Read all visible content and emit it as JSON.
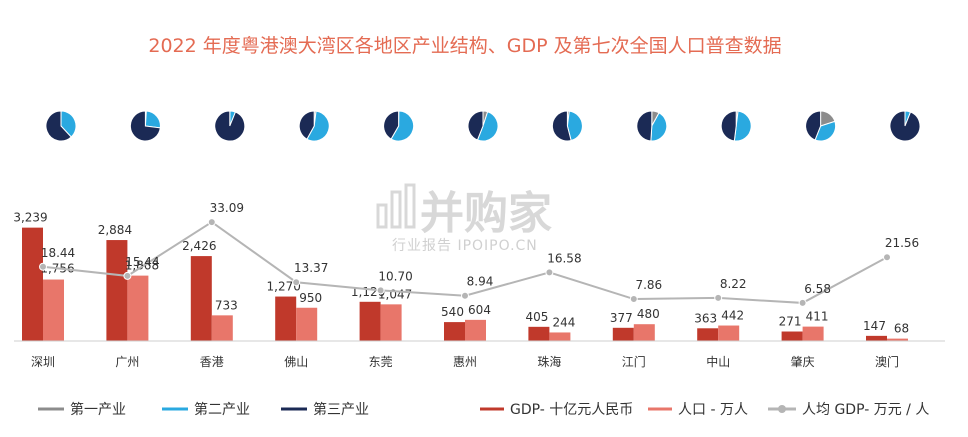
{
  "watermark": {
    "brand": "并购家",
    "sub": "行业报告 IPOIPO.CN"
  },
  "chart_data": {
    "type": "bar",
    "title": "2022 年度粤港澳大湾区各地区产业结构、GDP 及第七次全国人口普查数据",
    "categories": [
      "深圳",
      "广州",
      "香港",
      "佛山",
      "东莞",
      "惠州",
      "珠海",
      "江门",
      "中山",
      "肇庆",
      "澳门"
    ],
    "series": [
      {
        "name": "GDP- 十亿元人民币",
        "color": "#c0392b",
        "values": [
          3239,
          2884,
          2426,
          1270,
          1120,
          540,
          405,
          377,
          363,
          271,
          147
        ],
        "labels": [
          "3,239",
          "2,884",
          "2,426",
          "1,270",
          "1,120",
          "540",
          "405",
          "377",
          "363",
          "271",
          "147"
        ]
      },
      {
        "name": "人口 - 万人",
        "color": "#e8766a",
        "values": [
          1756,
          1868,
          733,
          950,
          1047,
          604,
          244,
          480,
          442,
          411,
          68
        ],
        "labels": [
          "1,756",
          "1,868",
          "733",
          "950",
          "1,047",
          "604",
          "244",
          "480",
          "442",
          "411",
          "68"
        ]
      }
    ],
    "line_series": {
      "name": "人均 GDP- 万元 / 人",
      "color": "#b5b5b5",
      "values": [
        18.44,
        15.44,
        33.09,
        13.37,
        10.7,
        8.94,
        16.58,
        7.86,
        8.22,
        6.58,
        21.56
      ],
      "labels": [
        "18.44",
        "15.44",
        "33.09",
        "13.37",
        "10.70",
        "8.94",
        "16.58",
        "7.86",
        "8.22",
        "6.58",
        "21.56"
      ]
    },
    "pie_series": [
      {
        "name": "第一产业",
        "color": "#8c8c8c"
      },
      {
        "name": "第二产业",
        "color": "#2aa9e0"
      },
      {
        "name": "第三产业",
        "color": "#1b2a55"
      }
    ],
    "pies": [
      [
        0.001,
        0.38,
        0.619
      ],
      [
        0.01,
        0.26,
        0.73
      ],
      [
        0.001,
        0.06,
        0.939
      ],
      [
        0.02,
        0.56,
        0.42
      ],
      [
        0.003,
        0.58,
        0.417
      ],
      [
        0.05,
        0.51,
        0.44
      ],
      [
        0.02,
        0.44,
        0.54
      ],
      [
        0.08,
        0.43,
        0.49
      ],
      [
        0.02,
        0.5,
        0.48
      ],
      [
        0.2,
        0.36,
        0.44
      ],
      [
        0.0,
        0.06,
        0.94
      ]
    ],
    "legend_placement": "bottom",
    "grid": false
  }
}
